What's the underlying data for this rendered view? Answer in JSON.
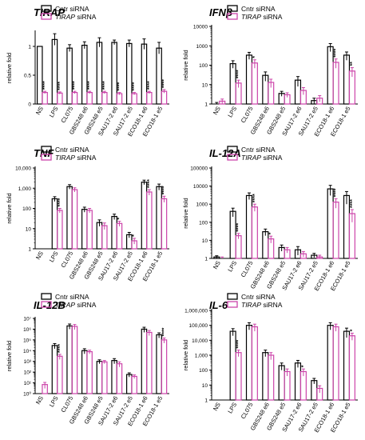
{
  "colors": {
    "control": "#000000",
    "knockdown": "#cc44aa",
    "axis": "#000000"
  },
  "categories": [
    "NS",
    "LPS",
    "CL075",
    "GBS248 e6",
    "GBS248 e5",
    "SAU17-2 e6",
    "SAU17-2 e5",
    "ECO18-1 e6",
    "ECO18-1 e5"
  ],
  "legend_control": "Cntr siRNA",
  "legend_knockdown_italic": "TIRAP",
  "legend_knockdown_suffix": " siRNA",
  "chart_data": [
    {
      "type": "bar",
      "title": "TIRAP",
      "ylabel": "relative fold",
      "scale": "linear",
      "ylim": [
        0,
        1.25
      ],
      "yticks": [
        0,
        0.5,
        1
      ],
      "ytick_labels": [
        "0",
        "0.5",
        "1"
      ],
      "categories": [
        "NS",
        "LPS",
        "CL075",
        "GBS248 e6",
        "GBS248 e5",
        "SAU17-2 e6",
        "SAU17-2 e5",
        "ECO18-1 e6",
        "ECO18-1 e5"
      ],
      "series": [
        {
          "name": "Cntr siRNA",
          "values": [
            1.0,
            1.12,
            0.97,
            1.02,
            1.07,
            1.07,
            1.05,
            1.04,
            0.97
          ],
          "errors": [
            0,
            0.1,
            0.06,
            0.06,
            0.08,
            0.04,
            0.06,
            0.09,
            0.1
          ]
        },
        {
          "name": "TIRAP siRNA",
          "values": [
            0.2,
            0.19,
            0.2,
            0.2,
            0.2,
            0.18,
            0.18,
            0.2,
            0.22
          ],
          "errors": [
            0.02,
            0.02,
            0.02,
            0.02,
            0.02,
            0.02,
            0.02,
            0.02,
            0.03
          ]
        }
      ],
      "stars": [
        "****",
        "****",
        "****",
        "****",
        "****",
        "****",
        "****",
        "****",
        "****"
      ]
    },
    {
      "type": "bar",
      "title": "IFNβ",
      "ylabel": "relative fold",
      "scale": "log",
      "ylim": [
        1,
        10000
      ],
      "yticks": [
        1,
        10,
        100,
        1000,
        10000
      ],
      "ytick_labels": [
        "1",
        "10",
        "100",
        "1000",
        "10000"
      ],
      "categories": [
        "NS",
        "LPS",
        "CL075",
        "GBS248 e6",
        "GBS248 e5",
        "SAU17-2 e6",
        "SAU17-2 e5",
        "ECO18-1 e6",
        "ECO18-1 e5"
      ],
      "series": [
        {
          "name": "Cntr siRNA",
          "values": [
            1,
            120,
            330,
            30,
            3.5,
            17,
            1.5,
            900,
            330
          ],
          "errors": [
            0.2,
            50,
            130,
            15,
            1,
            9,
            0.5,
            400,
            150
          ]
        },
        {
          "name": "TIRAP siRNA",
          "values": [
            1.4,
            12,
            130,
            13,
            3,
            5,
            2,
            140,
            50
          ],
          "errors": [
            0.4,
            5,
            60,
            6,
            0.8,
            2,
            0.7,
            70,
            25
          ]
        }
      ],
      "stars": [
        "",
        "****",
        "*",
        "",
        "",
        "",
        "",
        "****",
        "**"
      ]
    },
    {
      "type": "bar",
      "title": "TNF",
      "ylabel": "relative fold",
      "scale": "log",
      "ylim": [
        1,
        10000
      ],
      "yticks": [
        1,
        10,
        100,
        1000,
        10000
      ],
      "ytick_labels": [
        "1",
        "10",
        "100",
        "1,000",
        "10,000"
      ],
      "categories": [
        "NS",
        "LPS",
        "CL075",
        "GBS248 e6",
        "GBS248 e5",
        "SAU17-2 e6",
        "SAU17-2 e5",
        "ECO18-1 e6",
        "ECO18-1 e5"
      ],
      "series": [
        {
          "name": "Cntr siRNA",
          "values": [
            1,
            300,
            1200,
            90,
            20,
            40,
            5,
            2000,
            1200
          ],
          "errors": [
            0,
            80,
            300,
            25,
            7,
            12,
            1.5,
            500,
            400
          ]
        },
        {
          "name": "TIRAP siRNA",
          "values": [
            1,
            80,
            850,
            80,
            14,
            18,
            2.5,
            650,
            300
          ],
          "errors": [
            0,
            20,
            200,
            20,
            5,
            5,
            0.8,
            200,
            100
          ]
        }
      ],
      "stars": [
        "",
        "****",
        "",
        "",
        "",
        "*",
        "*",
        "****",
        "****"
      ]
    },
    {
      "type": "bar",
      "title": "IL-12A",
      "ylabel": "relative fold",
      "scale": "log",
      "ylim": [
        1,
        100000
      ],
      "yticks": [
        1,
        10,
        100,
        1000,
        10000,
        100000
      ],
      "ytick_labels": [
        "1",
        "10",
        "100",
        "1000",
        "10000",
        "100000"
      ],
      "categories": [
        "NS",
        "LPS",
        "CL075",
        "GBS248 e6",
        "GBS248 e5",
        "SAU17-2 e6",
        "SAU17-2 e5",
        "ECO18-1 e6",
        "ECO18-1 e5"
      ],
      "series": [
        {
          "name": "Cntr siRNA",
          "values": [
            1.2,
            400,
            3000,
            30,
            4,
            3,
            1.5,
            7000,
            3000
          ],
          "errors": [
            0.2,
            200,
            1200,
            12,
            1.5,
            1.5,
            0.4,
            4000,
            2000
          ]
        },
        {
          "name": "TIRAP siRNA",
          "values": [
            1,
            18,
            700,
            12,
            3,
            1.8,
            1.2,
            1300,
            300
          ],
          "errors": [
            0.2,
            6,
            300,
            5,
            1,
            0.6,
            0.3,
            700,
            200
          ]
        }
      ],
      "stars": [
        "",
        "****",
        "****",
        "*",
        "",
        "",
        "",
        "****",
        "****"
      ]
    },
    {
      "type": "bar",
      "title": "IL-12B",
      "ylabel": "relative fold",
      "scale": "log",
      "ylim": [
        1,
        10000000
      ],
      "yticks": [
        1,
        10,
        100,
        1000,
        10000,
        100000,
        1000000,
        10000000
      ],
      "ytick_labels": [
        "10⁰",
        "10¹",
        "10²",
        "10³",
        "10⁴",
        "10⁵",
        "10⁶",
        "10⁷"
      ],
      "categories": [
        "NS",
        "LPS",
        "CL075",
        "GBS248 e6",
        "GBS248 e5",
        "SAU17-2 e6",
        "SAU17-2 e5",
        "ECO18-1 e6",
        "ECO18-1 e5"
      ],
      "series": [
        {
          "name": "Cntr siRNA",
          "values": [
            1,
            30000,
            2000000,
            10000,
            1000,
            1200,
            60,
            1000000,
            300000
          ],
          "errors": [
            0,
            15000,
            1000000,
            5000,
            400,
            600,
            25,
            500000,
            150000
          ]
        },
        {
          "name": "TIRAP siRNA",
          "values": [
            7,
            3000,
            1800000,
            8000,
            900,
            600,
            40,
            500000,
            100000
          ],
          "errors": [
            4,
            1500,
            900000,
            3000,
            300,
            300,
            15,
            250000,
            50000
          ]
        }
      ],
      "stars": [
        "",
        "****",
        "",
        "",
        "",
        "",
        "",
        "",
        "****"
      ]
    },
    {
      "type": "bar",
      "title": "IL-6",
      "ylabel": "relative fold",
      "scale": "log",
      "ylim": [
        1,
        1000000
      ],
      "yticks": [
        1,
        10,
        100,
        1000,
        10000,
        100000,
        1000000
      ],
      "ytick_labels": [
        "1",
        "10",
        "100",
        "1,000",
        "10,000",
        "100,000",
        "1,000,000"
      ],
      "categories": [
        "NS",
        "LPS",
        "CL075",
        "GBS248 e6",
        "GBS248 e5",
        "SAU17-2 e6",
        "SAU17-2 e5",
        "ECO18-1 e6",
        "ECO18-1 e5"
      ],
      "series": [
        {
          "name": "Cntr siRNA",
          "values": [
            1,
            40000,
            100000,
            1500,
            200,
            300,
            20,
            100000,
            40000
          ],
          "errors": [
            0,
            20000,
            50000,
            700,
            100,
            150,
            8,
            50000,
            25000
          ]
        },
        {
          "name": "TIRAP siRNA",
          "values": [
            1,
            1500,
            80000,
            1000,
            80,
            80,
            6,
            80000,
            20000
          ],
          "errors": [
            0,
            700,
            40000,
            500,
            40,
            40,
            3,
            40000,
            10000
          ]
        }
      ],
      "stars": [
        "",
        "****",
        "",
        "",
        "",
        "*",
        "",
        "",
        "*"
      ]
    }
  ]
}
